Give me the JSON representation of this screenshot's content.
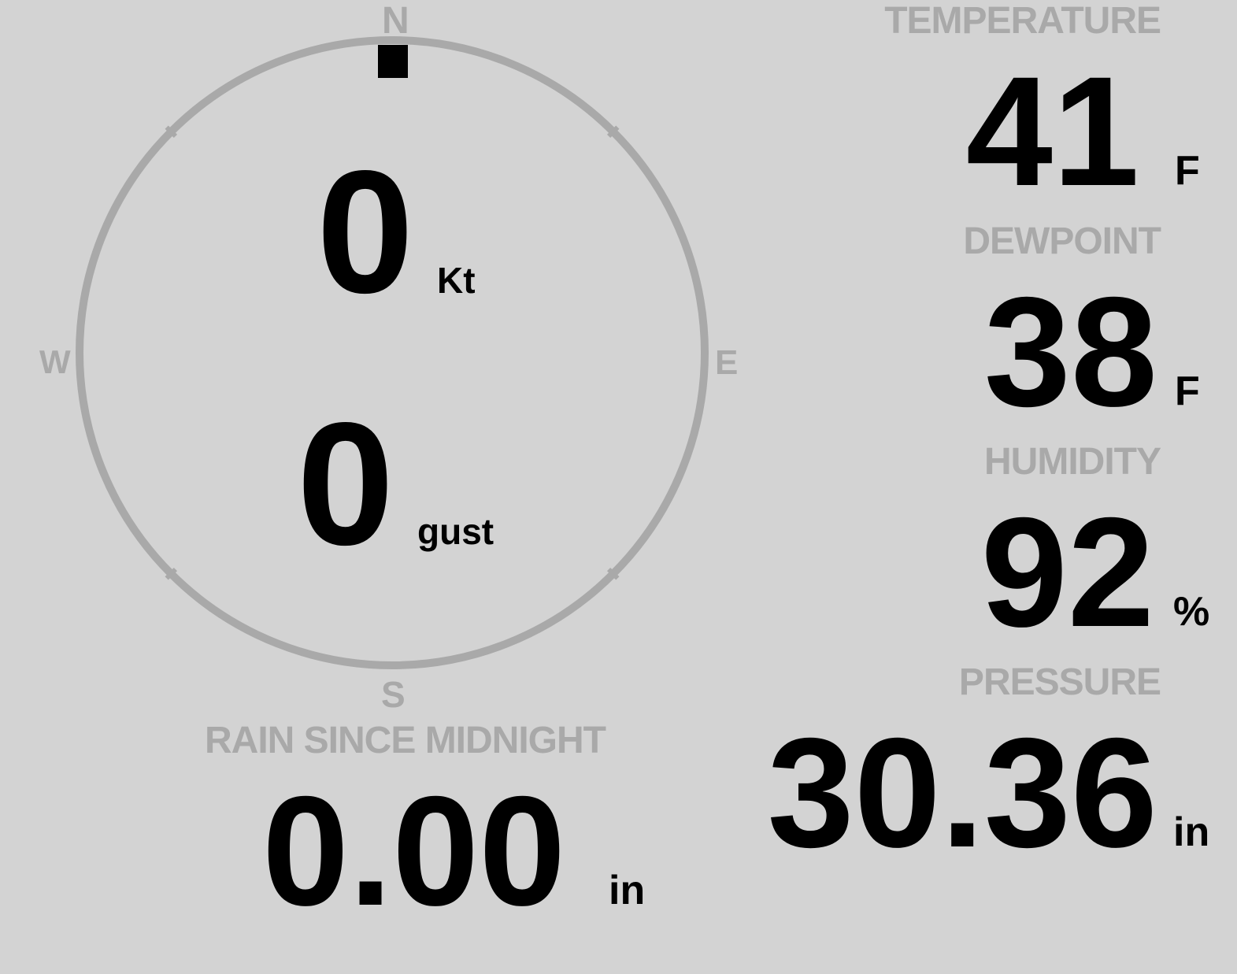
{
  "colors": {
    "background": "#d3d3d3",
    "label": "#a9a9a9",
    "value": "#000000",
    "compass_ring": "#a9a9a9",
    "wind_marker": "#000000"
  },
  "wind": {
    "direction_deg": 0,
    "speed": "0",
    "speed_unit": "Kt",
    "gust": "0",
    "gust_unit": "gust",
    "compass": {
      "n": "N",
      "e": "E",
      "s": "S",
      "w": "W"
    }
  },
  "temperature": {
    "label": "TEMPERATURE",
    "value": "41",
    "unit": "F"
  },
  "dewpoint": {
    "label": "DEWPOINT",
    "value": "38",
    "unit": "F"
  },
  "humidity": {
    "label": "HUMIDITY",
    "value": "92",
    "unit": "%"
  },
  "rain": {
    "label": "RAIN SINCE MIDNIGHT",
    "value": "0.00",
    "unit": "in"
  },
  "pressure": {
    "label": "PRESSURE",
    "value": "30.36",
    "unit": "in"
  }
}
